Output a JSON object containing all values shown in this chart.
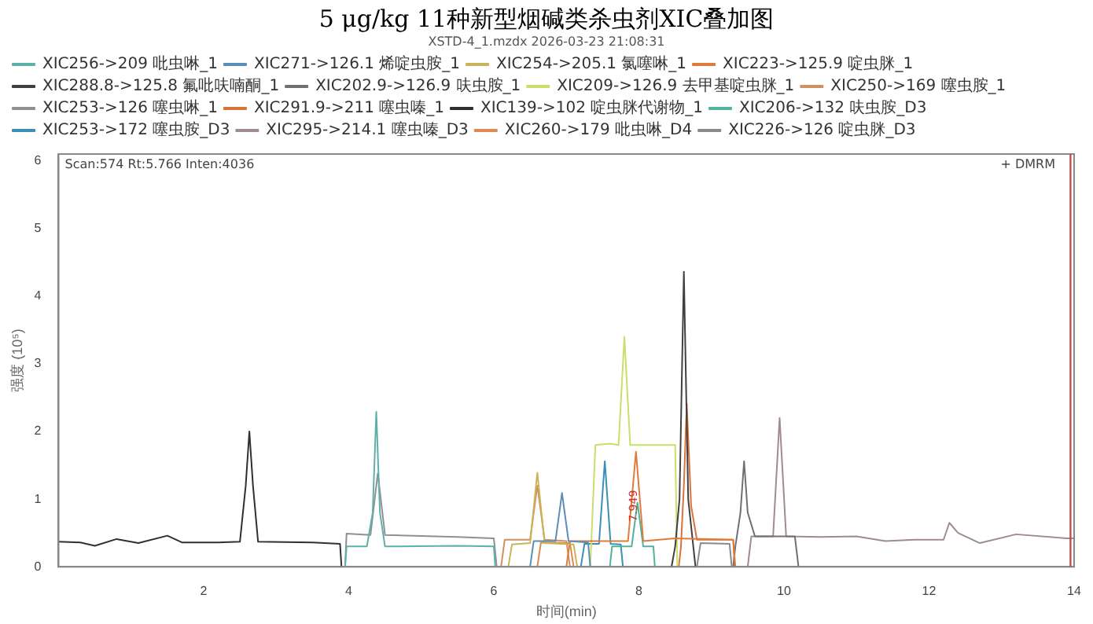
{
  "chart_data": {
    "type": "line",
    "title": "5 μg/kg 11种新型烟碱类杀虫剂XIC叠加图",
    "xlabel": "时间(min)",
    "ylabel": "强度 (10⁵)",
    "annotations": [
      "XSTD-4_1.mzdx 2026-03-23 21:08:31",
      "Scan:574 Rt:5.766 Inten:4036",
      "+ DMRM",
      {
        "text": "7.949",
        "x": 7.93,
        "y": 0.9
      }
    ],
    "xlim": [
      0,
      14
    ],
    "xticks": [
      2,
      4,
      6,
      8,
      10,
      12,
      14
    ],
    "ylim": [
      0,
      6.1
    ],
    "yticks": [
      0,
      1,
      2,
      3,
      4,
      5,
      6
    ],
    "grid": false,
    "legend": "top",
    "marker": "none",
    "line_style": "solid",
    "ref_lines": [
      {
        "axis": "x",
        "value": 13.95,
        "color": "#c0504d"
      }
    ],
    "series": [
      {
        "name": "XIC256->209 吡虫啉_1",
        "color": "#5fb0a8",
        "x": [
          3.95,
          3.97,
          4.25,
          4.33,
          4.38,
          4.43,
          4.5,
          5.5,
          6.0,
          6.02
        ],
        "values": [
          0,
          0.3,
          0.3,
          0.8,
          2.29,
          0.8,
          0.3,
          0.31,
          0.3,
          0
        ]
      },
      {
        "name": "XIC271->126.1 烯啶虫胺_1",
        "color": "#5b8db8",
        "x": [
          6.5,
          6.55,
          6.85,
          6.94,
          7.03,
          7.3,
          7.33
        ],
        "values": [
          0,
          0.38,
          0.38,
          1.09,
          0.38,
          0.36,
          0
        ]
      },
      {
        "name": "XIC254->205.1 氯噻啉_1",
        "color": "#c9b458",
        "x": [
          6.2,
          6.25,
          6.5,
          6.6,
          6.7,
          7.1,
          7.15
        ],
        "values": [
          0,
          0.33,
          0.35,
          1.39,
          0.35,
          0.33,
          0
        ]
      },
      {
        "name": "XIC223->125.9 啶虫脒_1",
        "color": "#e07b39",
        "x": [
          7.0,
          7.05,
          7.85,
          7.96,
          8.06,
          8.5,
          9.3,
          9.33
        ],
        "values": [
          0,
          0.38,
          0.38,
          1.7,
          0.38,
          0.42,
          0.4,
          0
        ]
      },
      {
        "name": "XIC288.8->125.8 氟吡呋喃酮_1",
        "color": "#404040",
        "x": [
          8.45,
          8.5,
          8.56,
          8.62,
          8.68,
          8.75,
          8.78
        ],
        "values": [
          0,
          0.3,
          1.0,
          4.36,
          1.0,
          0.3,
          0
        ]
      },
      {
        "name": "XIC202.9->126.9 呋虫胺_1",
        "color": "#707070",
        "x": [
          9.3,
          9.33,
          9.4,
          9.45,
          9.5,
          9.6,
          10.15,
          10.2
        ],
        "values": [
          0,
          0.3,
          0.8,
          1.56,
          0.8,
          0.45,
          0.45,
          0
        ]
      },
      {
        "name": "XIC209->126.9 去甲基啶虫脒_1",
        "color": "#c8e06a",
        "x": [
          7.33,
          7.4,
          7.6,
          7.72,
          7.8,
          7.88,
          8.0,
          8.3,
          8.5,
          8.53
        ],
        "values": [
          0,
          1.8,
          1.82,
          1.8,
          3.4,
          1.8,
          1.8,
          1.8,
          1.8,
          0
        ]
      },
      {
        "name": "XIC250->169 噻虫胺_1",
        "color": "#d09060",
        "x": [
          6.1,
          6.15,
          6.5,
          6.6,
          6.7,
          7.0,
          7.05
        ],
        "values": [
          0,
          0.4,
          0.4,
          1.2,
          0.4,
          0.38,
          0
        ]
      },
      {
        "name": "XIC253->126 噻虫啉_1",
        "color": "#909090",
        "x": [
          3.95,
          3.97,
          4.3,
          4.4,
          4.5,
          5.5,
          6.0,
          6.04
        ],
        "values": [
          0,
          0.49,
          0.47,
          1.38,
          0.47,
          0.44,
          0.42,
          0
        ]
      },
      {
        "name": "XIC291.9->211 噻虫嗪_1",
        "color": "#d9733b",
        "x": [
          8.55,
          8.58,
          8.62,
          8.66,
          8.72,
          8.8,
          9.3,
          9.32
        ],
        "values": [
          0,
          0.3,
          1.2,
          2.41,
          0.9,
          0.4,
          0.4,
          0
        ]
      },
      {
        "name": "XIC139->102 啶虫脒代谢物_1",
        "color": "#303030",
        "x": [
          0,
          0.3,
          0.5,
          0.8,
          1.1,
          1.5,
          1.7,
          2.2,
          2.5,
          2.58,
          2.63,
          2.68,
          2.75,
          3.5,
          3.88,
          3.9
        ],
        "values": [
          0.37,
          0.36,
          0.31,
          0.41,
          0.35,
          0.46,
          0.36,
          0.36,
          0.37,
          1.2,
          2.0,
          1.2,
          0.37,
          0.36,
          0.34,
          0
        ]
      },
      {
        "name": "XIC206->132 呋虫胺_D3",
        "color": "#4fb3a0",
        "x": [
          7.6,
          7.63,
          7.9,
          7.98,
          8.06,
          8.2,
          8.22
        ],
        "values": [
          0,
          0.3,
          0.3,
          0.95,
          0.3,
          0.3,
          0
        ]
      },
      {
        "name": "XIC253->172 噻虫胺_D3",
        "color": "#3a8fb7",
        "x": [
          7.2,
          7.25,
          7.45,
          7.53,
          7.61,
          7.75,
          7.78
        ],
        "values": [
          0,
          0.34,
          0.34,
          1.56,
          0.34,
          0.33,
          0
        ]
      },
      {
        "name": "XIC295->214.1 噻虫嗪_D3",
        "color": "#a08a94",
        "x": [
          9.5,
          9.55,
          9.85,
          9.94,
          10.03,
          10.5,
          11.0,
          11.4,
          11.8,
          12.2,
          12.28,
          12.4,
          12.7,
          13.2,
          13.9,
          14.0
        ],
        "values": [
          0,
          0.45,
          0.45,
          2.2,
          0.45,
          0.44,
          0.45,
          0.38,
          0.4,
          0.4,
          0.65,
          0.5,
          0.35,
          0.48,
          0.42,
          0.42
        ]
      },
      {
        "name": "XIC260->179 吡虫啉_D4",
        "color": "#e08850",
        "x": [
          6.6,
          6.65,
          7.05,
          7.1
        ],
        "values": [
          0,
          0.36,
          0.35,
          0
        ]
      },
      {
        "name": "XIC226->126 啶虫脒_D3",
        "color": "#8a8a8a",
        "x": [
          8.8,
          8.85,
          9.25,
          9.28
        ],
        "values": [
          0,
          0.35,
          0.34,
          0
        ]
      }
    ]
  }
}
